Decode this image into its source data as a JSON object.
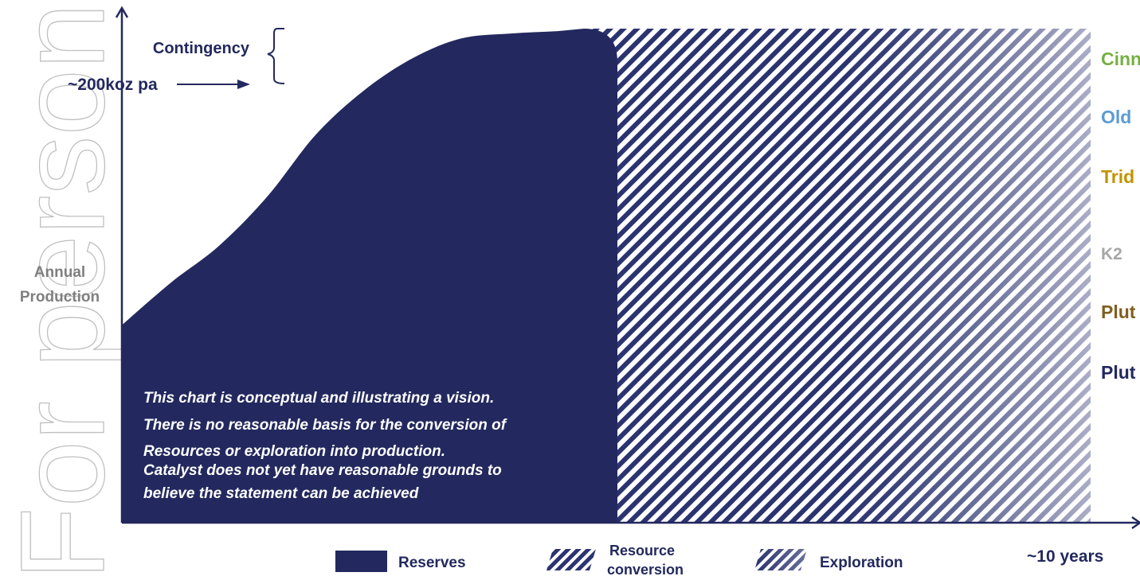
{
  "watermark": "For personal use only",
  "chart_data": {
    "type": "area",
    "title": "",
    "ylabel_lines": [
      "Annual",
      "Production"
    ],
    "xlabel": "~10 years",
    "y_target_label": "~200koz pa",
    "contingency_label": "Contingency",
    "regions": [
      {
        "name": "Reserves",
        "style": "solid",
        "color": "#23295e"
      },
      {
        "name": "Resource conversion",
        "style": "hatched",
        "color": "#23295e"
      },
      {
        "name": "Exploration",
        "style": "hatched-fading",
        "color": "#23295e"
      }
    ],
    "curve": {
      "description_only_shape": "s-curve rising then plateau",
      "x": [
        0,
        0.5,
        1,
        1.5,
        2,
        2.5,
        3,
        3.5,
        4,
        4.5,
        5,
        5.5,
        6,
        6.5,
        7,
        7.5,
        8,
        8.5,
        9,
        9.5,
        10
      ],
      "y": [
        80,
        97,
        112,
        132,
        157,
        175,
        188,
        196,
        198,
        199,
        200,
        200,
        200,
        200,
        200,
        200,
        200,
        200,
        200,
        200,
        200
      ]
    },
    "ylim": [
      0,
      215
    ],
    "xlim": [
      0,
      10
    ],
    "legend": {
      "items": [
        {
          "label_lines": [
            "Reserves"
          ],
          "style": "solid"
        },
        {
          "label_lines": [
            "Resource",
            "conversion"
          ],
          "style": "hatched"
        },
        {
          "label_lines": [
            "Exploration"
          ],
          "style": "hatched-fading"
        }
      ],
      "placement": "bottom"
    },
    "right_labels": [
      {
        "text": "Cinn",
        "color": "#76b043"
      },
      {
        "text": "Old",
        "color": "#5b9bd5"
      },
      {
        "text": "Trid",
        "color": "#c09500"
      },
      {
        "text": "K2",
        "color": "#a6a6a6"
      },
      {
        "text": "Plut",
        "color": "#7f5f1f"
      },
      {
        "text": "Plut",
        "color": "#23295e"
      }
    ],
    "disclaimer_lines": [
      "This chart is conceptual and illustrating a vision.",
      "There is no reasonable basis for the conversion of",
      "Resources or exploration into production.",
      "Catalyst does not yet have reasonable grounds to",
      "believe the statement can be achieved"
    ],
    "grid": false
  }
}
